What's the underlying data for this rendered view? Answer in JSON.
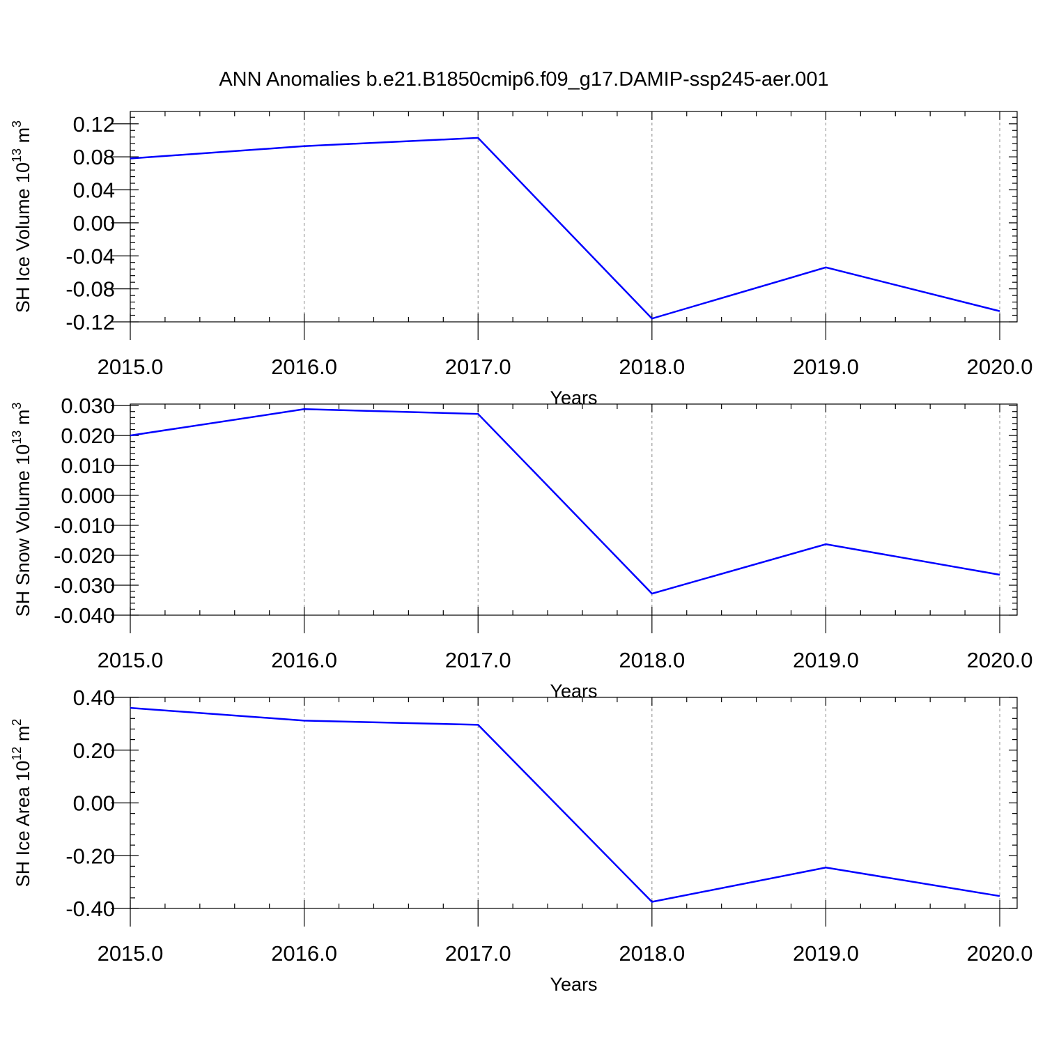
{
  "figure_title": "ANN Anomalies b.e21.B1850cmip6.f09_g17.DAMIP-ssp245-aer.001",
  "colors": {
    "line": "#0000ff",
    "axis": "#000000",
    "grid": "#888888"
  },
  "chart_data": [
    {
      "type": "line",
      "ylabel_main": "SH Ice Volume 10",
      "ylabel_exp": "13",
      "ylabel_unit": "m",
      "ylabel_unit_exp": "3",
      "xlabel": "Years",
      "x": [
        2015,
        2016,
        2017,
        2018,
        2019,
        2020
      ],
      "series": [
        {
          "values": [
            0.078,
            0.093,
            0.103,
            -0.116,
            -0.054,
            -0.107
          ]
        }
      ],
      "xlim": [
        2015,
        2020.1
      ],
      "ylim": [
        -0.12,
        0.135
      ],
      "xticks": [
        "2015.0",
        "2016.0",
        "2017.0",
        "2018.0",
        "2019.0",
        "2020.0"
      ],
      "yticks": [
        "0.12",
        "0.08",
        "0.04",
        "0.00",
        "-0.04",
        "-0.08",
        "-0.12"
      ],
      "ytick_values": [
        0.12,
        0.08,
        0.04,
        0.0,
        -0.04,
        -0.08,
        -0.12
      ],
      "grid": "vertical dashed"
    },
    {
      "type": "line",
      "ylabel_main": "SH Snow Volume 10",
      "ylabel_exp": "13",
      "ylabel_unit": "m",
      "ylabel_unit_exp": "3",
      "xlabel": "Years",
      "x": [
        2015,
        2016,
        2017,
        2018,
        2019,
        2020
      ],
      "series": [
        {
          "values": [
            0.02,
            0.0288,
            0.0272,
            -0.0328,
            -0.0163,
            -0.0265
          ]
        }
      ],
      "xlim": [
        2015,
        2020.1
      ],
      "ylim": [
        -0.04,
        0.0305
      ],
      "xticks": [
        "2015.0",
        "2016.0",
        "2017.0",
        "2018.0",
        "2019.0",
        "2020.0"
      ],
      "yticks": [
        "0.030",
        "0.020",
        "0.010",
        "0.000",
        "-0.010",
        "-0.020",
        "-0.030",
        "-0.040"
      ],
      "ytick_values": [
        0.03,
        0.02,
        0.01,
        0.0,
        -0.01,
        -0.02,
        -0.03,
        -0.04
      ],
      "grid": "vertical dashed"
    },
    {
      "type": "line",
      "ylabel_main": "SH Ice Area 10",
      "ylabel_exp": "12",
      "ylabel_unit": "m",
      "ylabel_unit_exp": "2",
      "xlabel": "Years",
      "x": [
        2015,
        2016,
        2017,
        2018,
        2019,
        2020
      ],
      "series": [
        {
          "values": [
            0.36,
            0.312,
            0.296,
            -0.375,
            -0.245,
            -0.353
          ]
        }
      ],
      "xlim": [
        2015,
        2020.1
      ],
      "ylim": [
        -0.4,
        0.4
      ],
      "xticks": [
        "2015.0",
        "2016.0",
        "2017.0",
        "2018.0",
        "2019.0",
        "2020.0"
      ],
      "yticks": [
        "0.40",
        "0.20",
        "0.00",
        "-0.20",
        "-0.40"
      ],
      "ytick_values": [
        0.4,
        0.2,
        0.0,
        -0.2,
        -0.4
      ],
      "grid": "vertical dashed"
    }
  ]
}
